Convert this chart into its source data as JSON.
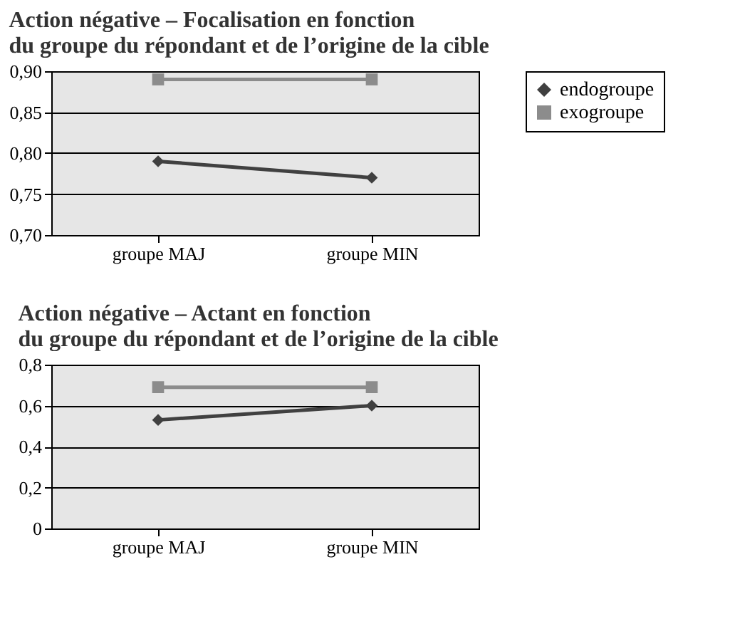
{
  "chart_data": [
    {
      "type": "line",
      "title": "Action négative – Focalisation en fonction\ndu groupe du répondant et de l’origine de la cible",
      "categories": [
        "groupe MAJ",
        "groupe MIN"
      ],
      "series": [
        {
          "name": "endogroupe",
          "color": "#404040",
          "marker": "diamond",
          "values": [
            0.79,
            0.77
          ]
        },
        {
          "name": "exogroupe",
          "color": "#8c8c8c",
          "marker": "square",
          "values": [
            0.89,
            0.89
          ]
        }
      ],
      "ylim": [
        0.7,
        0.9
      ],
      "yticks": [
        {
          "value": 0.7,
          "label": "0,70"
        },
        {
          "value": 0.75,
          "label": "0,75"
        },
        {
          "value": 0.8,
          "label": "0,80"
        },
        {
          "value": 0.85,
          "label": "0,85"
        },
        {
          "value": 0.9,
          "label": "0,90"
        }
      ],
      "grid": "y",
      "legend": "right"
    },
    {
      "type": "line",
      "title": "Action négative – Actant en fonction\ndu groupe du répondant et de l’origine de la cible",
      "categories": [
        "groupe MAJ",
        "groupe MIN"
      ],
      "series": [
        {
          "name": "endogroupe",
          "color": "#404040",
          "marker": "diamond",
          "values": [
            0.53,
            0.6
          ]
        },
        {
          "name": "exogroupe",
          "color": "#8c8c8c",
          "marker": "square",
          "values": [
            0.69,
            0.69
          ]
        }
      ],
      "ylim": [
        0,
        0.8
      ],
      "yticks": [
        0,
        {
          "value": 0.2,
          "label": "0,2"
        },
        {
          "value": 0.4,
          "label": "0,4"
        },
        {
          "value": 0.6,
          "label": "0,6"
        },
        {
          "value": 0.8,
          "label": "0,8"
        }
      ],
      "grid": "y",
      "legend": "right"
    }
  ]
}
